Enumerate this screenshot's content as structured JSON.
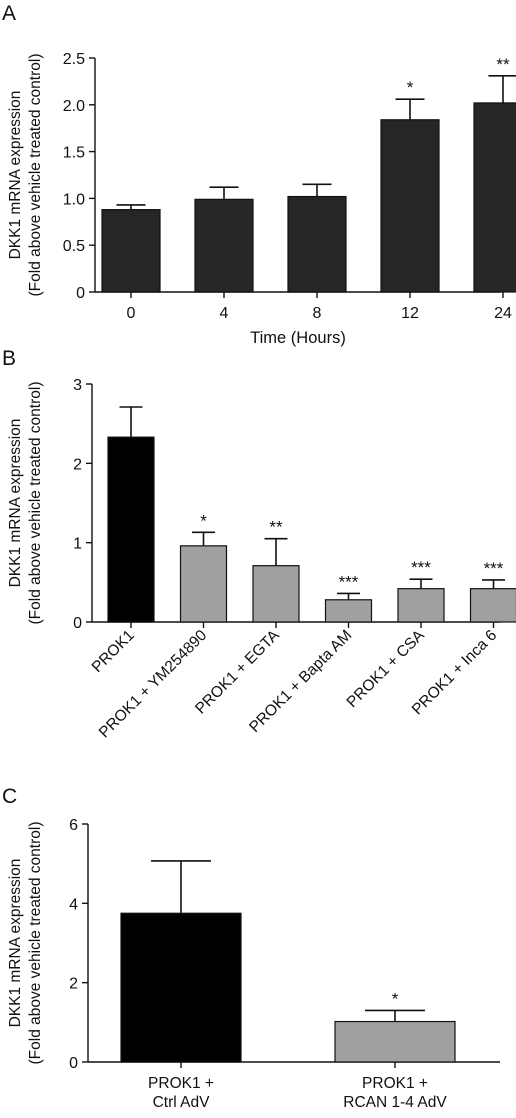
{
  "panels": [
    {
      "label": "A"
    },
    {
      "label": "B"
    },
    {
      "label": "C"
    }
  ],
  "chart_data": [
    {
      "type": "bar",
      "categories": [
        "0",
        "4",
        "8",
        "12",
        "24"
      ],
      "values": [
        0.88,
        0.99,
        1.02,
        1.84,
        2.02
      ],
      "errors": [
        0.05,
        0.13,
        0.13,
        0.22,
        0.29
      ],
      "significance": [
        "",
        "",
        "",
        "*",
        "**"
      ],
      "bar_colors": [
        "#262626",
        "#262626",
        "#262626",
        "#262626",
        "#262626"
      ],
      "xlabel": "Time (Hours)",
      "ylabel": [
        "DKK1 mRNA expression",
        "(Fold above vehicle treated control)"
      ],
      "yticks": [
        "0",
        "0.5",
        "1.0",
        "1.5",
        "2.0",
        "2.5"
      ],
      "ylim": [
        0,
        2.5
      ]
    },
    {
      "type": "bar",
      "categories": [
        "PROK1",
        "PROK1 + YM254890",
        "PROK1 + EGTA",
        "PROK1 + Bapta AM",
        "PROK1 + CSA",
        "PROK1 + Inca 6"
      ],
      "values": [
        2.33,
        0.96,
        0.71,
        0.28,
        0.42,
        0.42
      ],
      "errors": [
        0.38,
        0.17,
        0.34,
        0.08,
        0.12,
        0.11
      ],
      "significance": [
        "",
        "*",
        "**",
        "***",
        "***",
        "***"
      ],
      "bar_colors": [
        "#000000",
        "#a0a0a0",
        "#a0a0a0",
        "#a0a0a0",
        "#a0a0a0",
        "#a0a0a0"
      ],
      "xlabel": "",
      "ylabel": [
        "DKK1 mRNA expression",
        "(Fold above vehicle treated control)"
      ],
      "yticks": [
        "0",
        "1",
        "2",
        "3"
      ],
      "ylim": [
        0,
        3
      ]
    },
    {
      "type": "bar",
      "categories": [
        [
          "PROK1 +",
          "Ctrl AdV"
        ],
        [
          "PROK1 +",
          "RCAN 1-4 AdV"
        ]
      ],
      "values": [
        3.75,
        1.02
      ],
      "errors": [
        1.32,
        0.28
      ],
      "significance": [
        "",
        "*"
      ],
      "bar_colors": [
        "#000000",
        "#a0a0a0"
      ],
      "xlabel": "",
      "ylabel": [
        "DKK1 mRNA expression",
        "(Fold above vehicle treated control)"
      ],
      "yticks": [
        "0",
        "2",
        "4",
        "6"
      ],
      "ylim": [
        0,
        6
      ]
    }
  ]
}
